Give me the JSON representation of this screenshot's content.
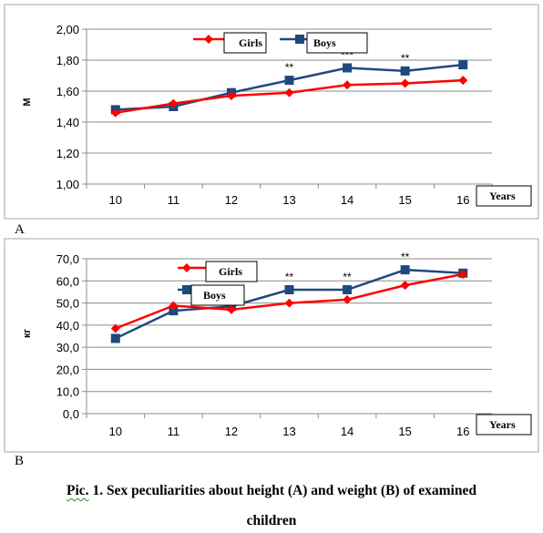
{
  "chart_data": [
    {
      "type": "line",
      "panel_label": "A",
      "ylabel": "M",
      "xlabel": "Years",
      "categories": [
        "10",
        "11",
        "12",
        "13",
        "14",
        "15",
        "16"
      ],
      "ylim": [
        1.0,
        2.0
      ],
      "y_ticks": [
        "1,00",
        "1,20",
        "1,40",
        "1,60",
        "1,80",
        "2,00"
      ],
      "y_tick_values": [
        1.0,
        1.2,
        1.4,
        1.6,
        1.8,
        2.0
      ],
      "grid": true,
      "legend_position": "top-center",
      "series": [
        {
          "name": "Girls",
          "color": "#ff0000",
          "marker": "diamond",
          "values": [
            1.46,
            1.52,
            1.57,
            1.59,
            1.64,
            1.65,
            1.67
          ]
        },
        {
          "name": "Boys",
          "color": "#1f497d",
          "marker": "square",
          "values": [
            1.48,
            1.5,
            1.59,
            1.67,
            1.75,
            1.73,
            1.77
          ]
        }
      ],
      "annotations": [
        {
          "category": "13",
          "text": "**"
        },
        {
          "category": "14",
          "text": "***"
        },
        {
          "category": "15",
          "text": "**"
        }
      ]
    },
    {
      "type": "line",
      "panel_label": "B",
      "ylabel": "кг",
      "xlabel": "Years",
      "categories": [
        "10",
        "11",
        "12",
        "13",
        "14",
        "15",
        "16"
      ],
      "ylim": [
        0,
        70
      ],
      "y_ticks": [
        "0,0",
        "10,0",
        "20,0",
        "30,0",
        "40,0",
        "50,0",
        "60,0",
        "70,0"
      ],
      "y_tick_values": [
        0,
        10,
        20,
        30,
        40,
        50,
        60,
        70
      ],
      "grid": true,
      "legend_position": "top-left",
      "series": [
        {
          "name": "Girls",
          "color": "#ff0000",
          "marker": "diamond",
          "values": [
            38.5,
            48.8,
            47.0,
            50.0,
            51.5,
            58.0,
            63.0
          ]
        },
        {
          "name": "Boys",
          "color": "#1f497d",
          "marker": "square",
          "values": [
            34.0,
            46.5,
            48.5,
            56.0,
            56.0,
            65.0,
            63.5
          ]
        }
      ],
      "annotations": [
        {
          "category": "13",
          "text": "**"
        },
        {
          "category": "14",
          "text": "**"
        },
        {
          "category": "15",
          "text": "**"
        }
      ]
    }
  ],
  "caption": {
    "line1_word1": "Pic.",
    "line1_rest": " 1. Sex peculiarities about height (A) and weight (B) of examined",
    "line2": "children"
  }
}
